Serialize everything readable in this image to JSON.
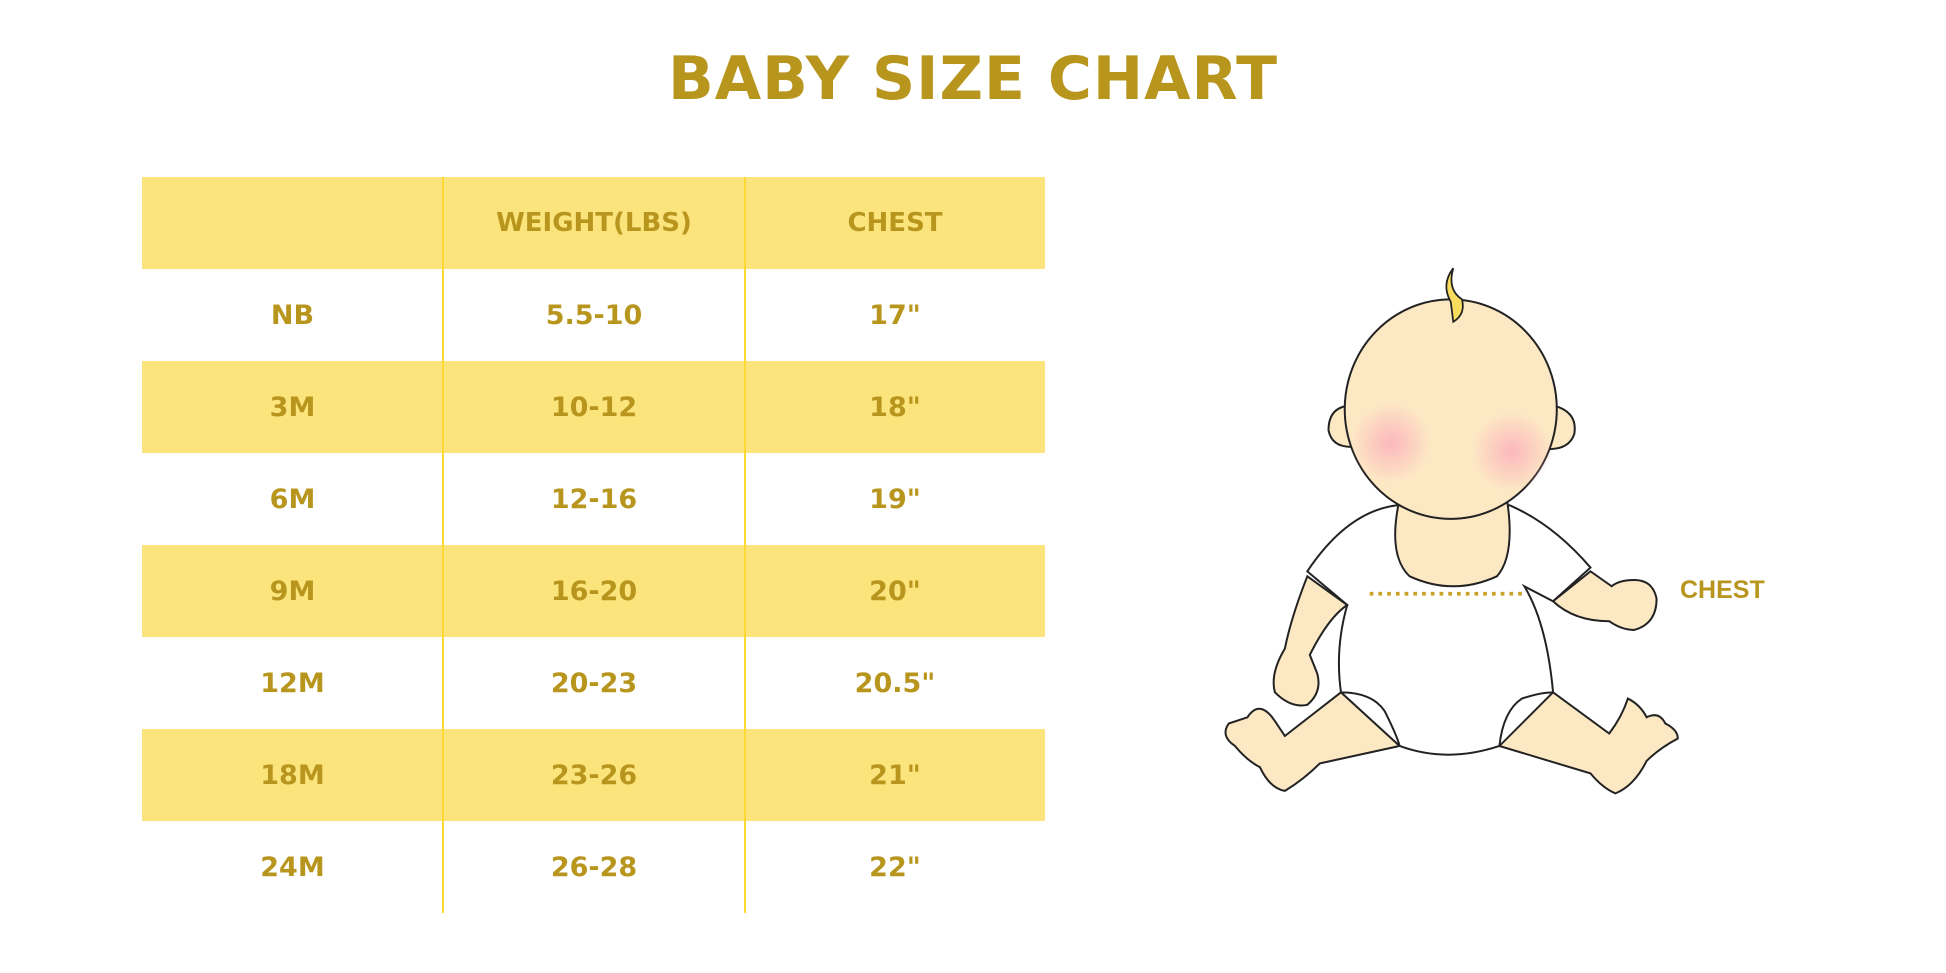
{
  "title": "BABY SIZE CHART",
  "table": {
    "headers": [
      "",
      "WEIGHT(LBS)",
      "CHEST"
    ],
    "rows": [
      [
        "NB",
        "5.5-10",
        "17\""
      ],
      [
        "3M",
        "10-12",
        "18\""
      ],
      [
        "6M",
        "12-16",
        "19\""
      ],
      [
        "9M",
        "16-20",
        "20\""
      ],
      [
        "12M",
        "20-23",
        "20.5\""
      ],
      [
        "18M",
        "23-26",
        "21\""
      ],
      [
        "24M",
        "26-28",
        "22\""
      ]
    ]
  },
  "illustration": {
    "label": "CHEST",
    "icon": "baby-illustration"
  },
  "colors": {
    "accent": "#b8961e",
    "header_fill": "#fbe47c",
    "divider": "#fcd834",
    "skin": "#fde8c4"
  }
}
